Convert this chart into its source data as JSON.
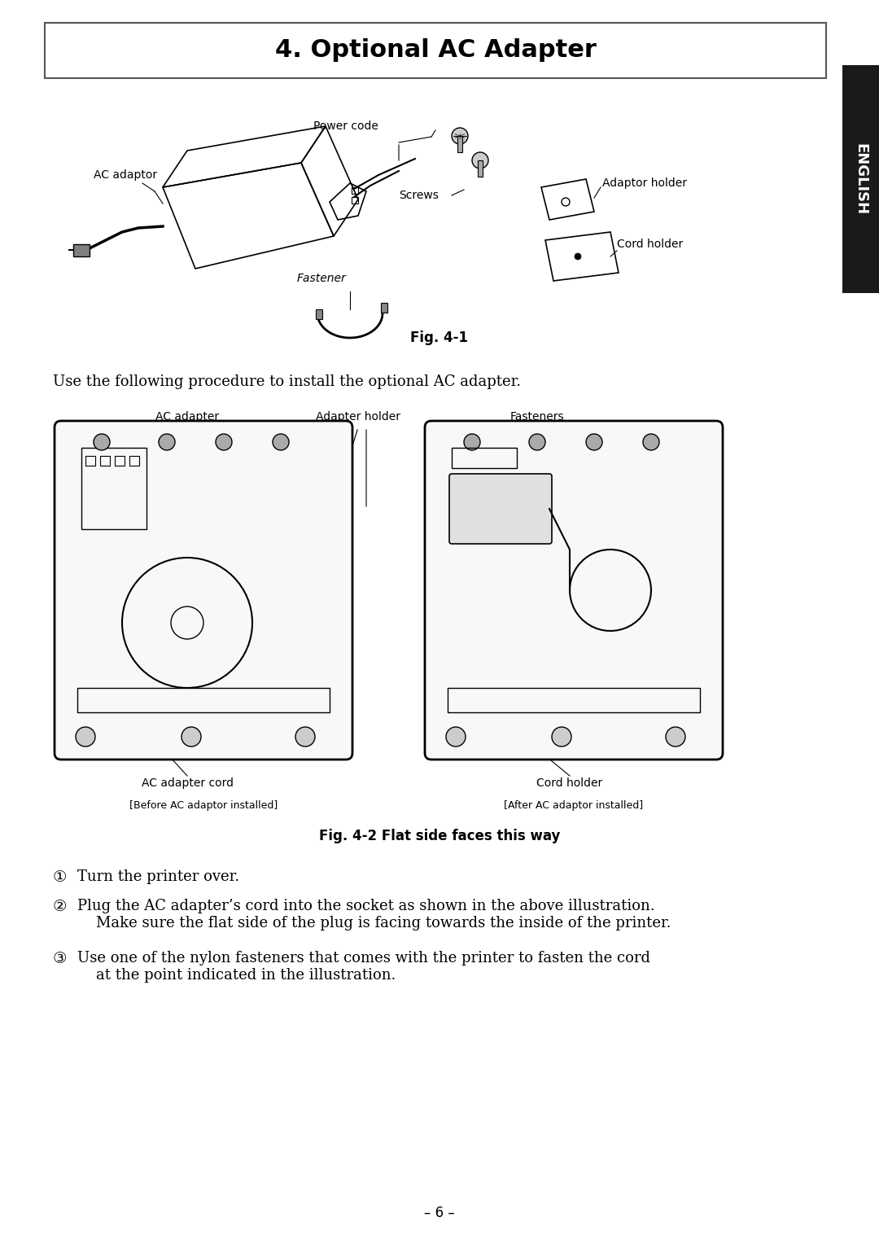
{
  "title": "4. Optional AC Adapter",
  "fig1_caption": "Fig. 4-1",
  "fig2_caption": "Fig. 4-2 Flat side faces this way",
  "intro_text": "Use the following procedure to install the optional AC adapter.",
  "fig1_labels": {
    "power_code": "Power code",
    "ac_adaptor": "AC adaptor",
    "screws": "Screws",
    "adaptor_holder": "Adaptor holder",
    "fastener": "Fastener",
    "cord_holder": "Cord holder"
  },
  "fig2_labels": {
    "ac_adapter": "AC adapter",
    "adapter_holder": "Adapter holder",
    "fasteners": "Fasteners",
    "ac_adapter_cord": "AC adapter cord",
    "cord_holder": "Cord holder",
    "before": "[Before AC adaptor installed]",
    "after": "[After AC adaptor installed]"
  },
  "steps": [
    "Turn the printer over.",
    "Plug the AC adapter’s cord into the socket as shown in the above illustration.\n    Make sure the flat side of the plug is facing towards the inside of the printer.",
    "Use one of the nylon fasteners that comes with the printer to fasten the cord\n    at the point indicated in the illustration."
  ],
  "page_number": "– 6 –",
  "sidebar_text": "ENGLISH",
  "bg_color": "#ffffff",
  "text_color": "#000000",
  "sidebar_bg": "#1a1a1a",
  "sidebar_text_color": "#ffffff",
  "border_color": "#555555",
  "title_fontsize": 22,
  "body_fontsize": 12,
  "label_fontsize": 10,
  "caption_fontsize": 12
}
